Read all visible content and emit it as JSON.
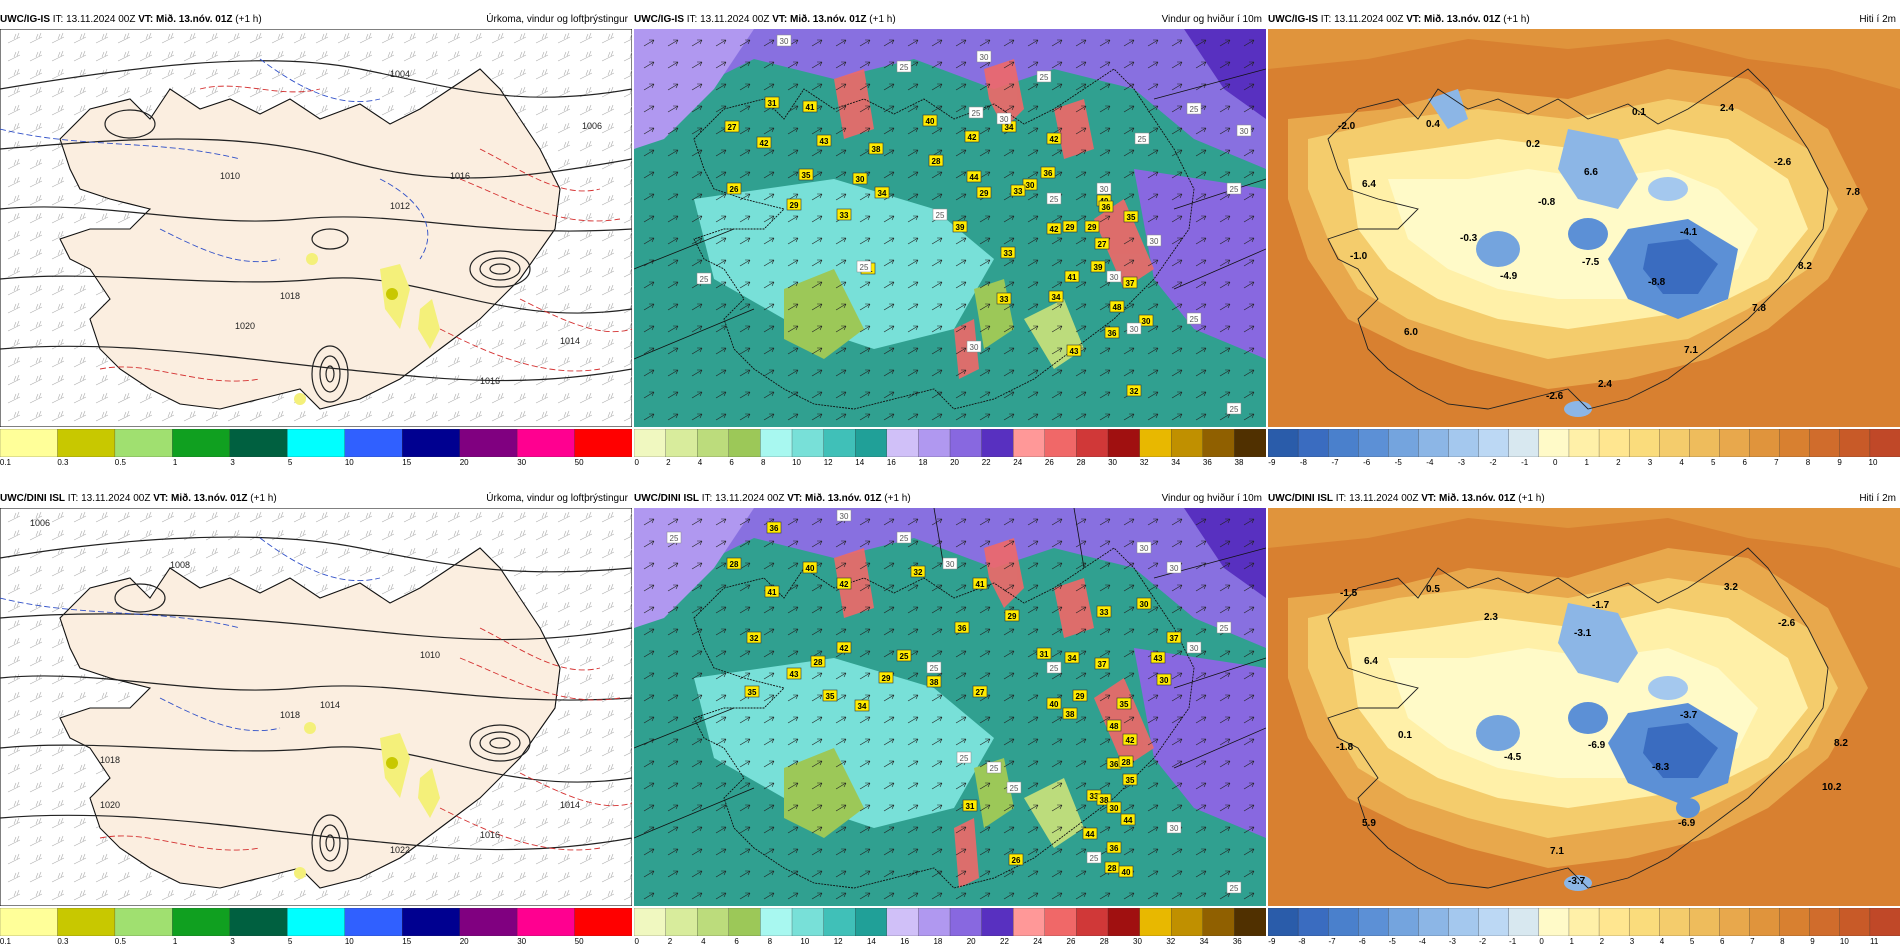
{
  "panels": [
    {
      "model": "UWC/IG-IS",
      "it": "IT: 13.11.2024 00Z",
      "vt": "VT: Mið. 13.nóv. 01Z",
      "lead": "(+1 h)",
      "product": "Úrkoma, vindur og loftþrýstingur"
    },
    {
      "model": "UWC/IG-IS",
      "it": "IT: 13.11.2024 00Z",
      "vt": "VT: Mið. 13.nóv. 01Z",
      "lead": "(+1 h)",
      "product": "Vindur og hviður í 10m"
    },
    {
      "model": "UWC/IG-IS",
      "it": "IT: 13.11.2024 00Z",
      "vt": "VT: Mið. 13.nóv. 01Z",
      "lead": "(+1 h)",
      "product": "Hiti í 2m"
    },
    {
      "model": "UWC/DINI ISL",
      "it": "IT: 13.11.2024 00Z",
      "vt": "VT: Mið. 13.nóv. 01Z",
      "lead": "(+1 h)",
      "product": "Úrkoma, vindur og loftþrýstingur"
    },
    {
      "model": "UWC/DINI ISL",
      "it": "IT: 13.11.2024 00Z",
      "vt": "VT: Mið. 13.nóv. 01Z",
      "lead": "(+1 h)",
      "product": "Vindur og hviður í 10m"
    },
    {
      "model": "UWC/DINI ISL",
      "it": "IT: 13.11.2024 00Z",
      "vt": "VT: Mið. 13.nóv. 01Z",
      "lead": "(+1 h)",
      "product": "Hiti í 2m"
    }
  ],
  "scales": {
    "precip": {
      "ticks": [
        "0.1",
        "0.3",
        "0.5",
        "1",
        "3",
        "5",
        "10",
        "15",
        "20",
        "30",
        "50"
      ],
      "colors": [
        "#ffff99",
        "#c8c800",
        "#a0e070",
        "#10a020",
        "#006040",
        "#00ffff",
        "#3060ff",
        "#000090",
        "#800080",
        "#ff0090",
        "#ff0000"
      ]
    },
    "wind": {
      "ticks": [
        "0",
        "2",
        "4",
        "6",
        "8",
        "10",
        "12",
        "14",
        "16",
        "18",
        "20",
        "22",
        "24",
        "26",
        "28",
        "30",
        "32",
        "34",
        "36",
        "38"
      ],
      "colors": [
        "#f0f8c0",
        "#d8ec9c",
        "#bcdc7c",
        "#9cc858",
        "#a8f8f0",
        "#78e0d8",
        "#40c0b8",
        "#20a098",
        "#d0c0f8",
        "#b098f0",
        "#8868e0",
        "#5830c0",
        "#ff9898",
        "#f06868",
        "#d03838",
        "#a01010",
        "#e8b800",
        "#c09000",
        "#906000",
        "#503000"
      ],
      "ticks_bottom": [
        "0",
        "2",
        "4",
        "6",
        "8",
        "10",
        "12",
        "14",
        "16",
        "18",
        "20",
        "22",
        "24",
        "26",
        "28",
        "30",
        "32",
        "34",
        "36"
      ]
    },
    "temp": {
      "ticks": [
        "-9",
        "-8",
        "-7",
        "-6",
        "-5",
        "-4",
        "-3",
        "-2",
        "-1",
        "0",
        "1",
        "2",
        "3",
        "4",
        "5",
        "6",
        "7",
        "8",
        "9",
        "10"
      ],
      "ticks_bottom": [
        "-9",
        "-8",
        "-7",
        "-6",
        "-5",
        "-4",
        "-3",
        "-2",
        "-1",
        "0",
        "1",
        "2",
        "3",
        "4",
        "5",
        "6",
        "7",
        "8",
        "9",
        "10",
        "11"
      ],
      "colors": [
        "#2a5caa",
        "#3a6cc0",
        "#4a80cc",
        "#5c90d6",
        "#74a4de",
        "#8cb6e6",
        "#a4c8ee",
        "#bcd8f4",
        "#d8e8f0",
        "#fffac8",
        "#fff0a8",
        "#ffe690",
        "#fadc7c",
        "#f4cc6c",
        "#eebc5c",
        "#e8a84c",
        "#e0943c",
        "#d88030",
        "#d06c2c",
        "#c85a28",
        "#c04828"
      ]
    }
  },
  "annotations": {
    "isobars_top": [
      "1004",
      "1006",
      "1010",
      "1012",
      "1016",
      "1018",
      "1014",
      "1020",
      "1016"
    ],
    "isobars_bottom": [
      "1006",
      "1008",
      "1010",
      "1014",
      "1018",
      "1020",
      "1022",
      "1018",
      "1016",
      "1014"
    ],
    "gusts_top": [
      "31",
      "41",
      "27",
      "42",
      "43",
      "38",
      "40",
      "42",
      "34",
      "30",
      "30",
      "29",
      "26",
      "35",
      "29",
      "33",
      "34",
      "28",
      "44",
      "39",
      "36",
      "29",
      "33",
      "33",
      "40",
      "36",
      "35",
      "42",
      "41",
      "39",
      "37",
      "31",
      "33",
      "34",
      "48",
      "36",
      "43",
      "27",
      "30",
      "32",
      "42",
      "29"
    ],
    "gusts_bottom": [
      "36",
      "28",
      "41",
      "40",
      "42",
      "32",
      "41",
      "29",
      "33",
      "30",
      "37",
      "32",
      "35",
      "42",
      "43",
      "28",
      "29",
      "34",
      "35",
      "38",
      "36",
      "27",
      "25",
      "31",
      "37",
      "35",
      "30",
      "42",
      "36",
      "28",
      "40",
      "38",
      "48",
      "33",
      "35",
      "44",
      "38",
      "36",
      "44",
      "26",
      "31",
      "29",
      "34",
      "43",
      "30",
      "28",
      "40"
    ],
    "white_top": [
      "30",
      "25",
      "25",
      "30",
      "25",
      "30",
      "25",
      "25",
      "30",
      "30",
      "25",
      "25",
      "25",
      "30",
      "25",
      "25",
      "25",
      "30",
      "30",
      "30",
      "25"
    ],
    "white_bottom": [
      "25",
      "30",
      "25",
      "30",
      "25",
      "25",
      "30",
      "30",
      "25",
      "25",
      "25",
      "25",
      "25",
      "30",
      "30",
      "25"
    ],
    "temps_top": [
      "-2.0",
      "0.4",
      "0.2",
      "0.1",
      "2.4",
      "-2.6",
      "7.8",
      "6.4",
      "6.6",
      "-0.8",
      "-0.3",
      "-1.0",
      "-4.9",
      "-7.5",
      "-4.1",
      "-8.8",
      "8.2",
      "7.8",
      "6.0",
      "7.1",
      "2.4",
      "-2.6"
    ],
    "temps_bottom": [
      "-1.5",
      "0.5",
      "2.3",
      "-1.7",
      "3.2",
      "-2.6",
      "6.4",
      "-3.1",
      "-3.7",
      "0.1",
      "-1.8",
      "-4.5",
      "-6.9",
      "-8.3",
      "8.2",
      "10.2",
      "5.9",
      "-6.9",
      "7.1",
      "-3.7"
    ]
  }
}
